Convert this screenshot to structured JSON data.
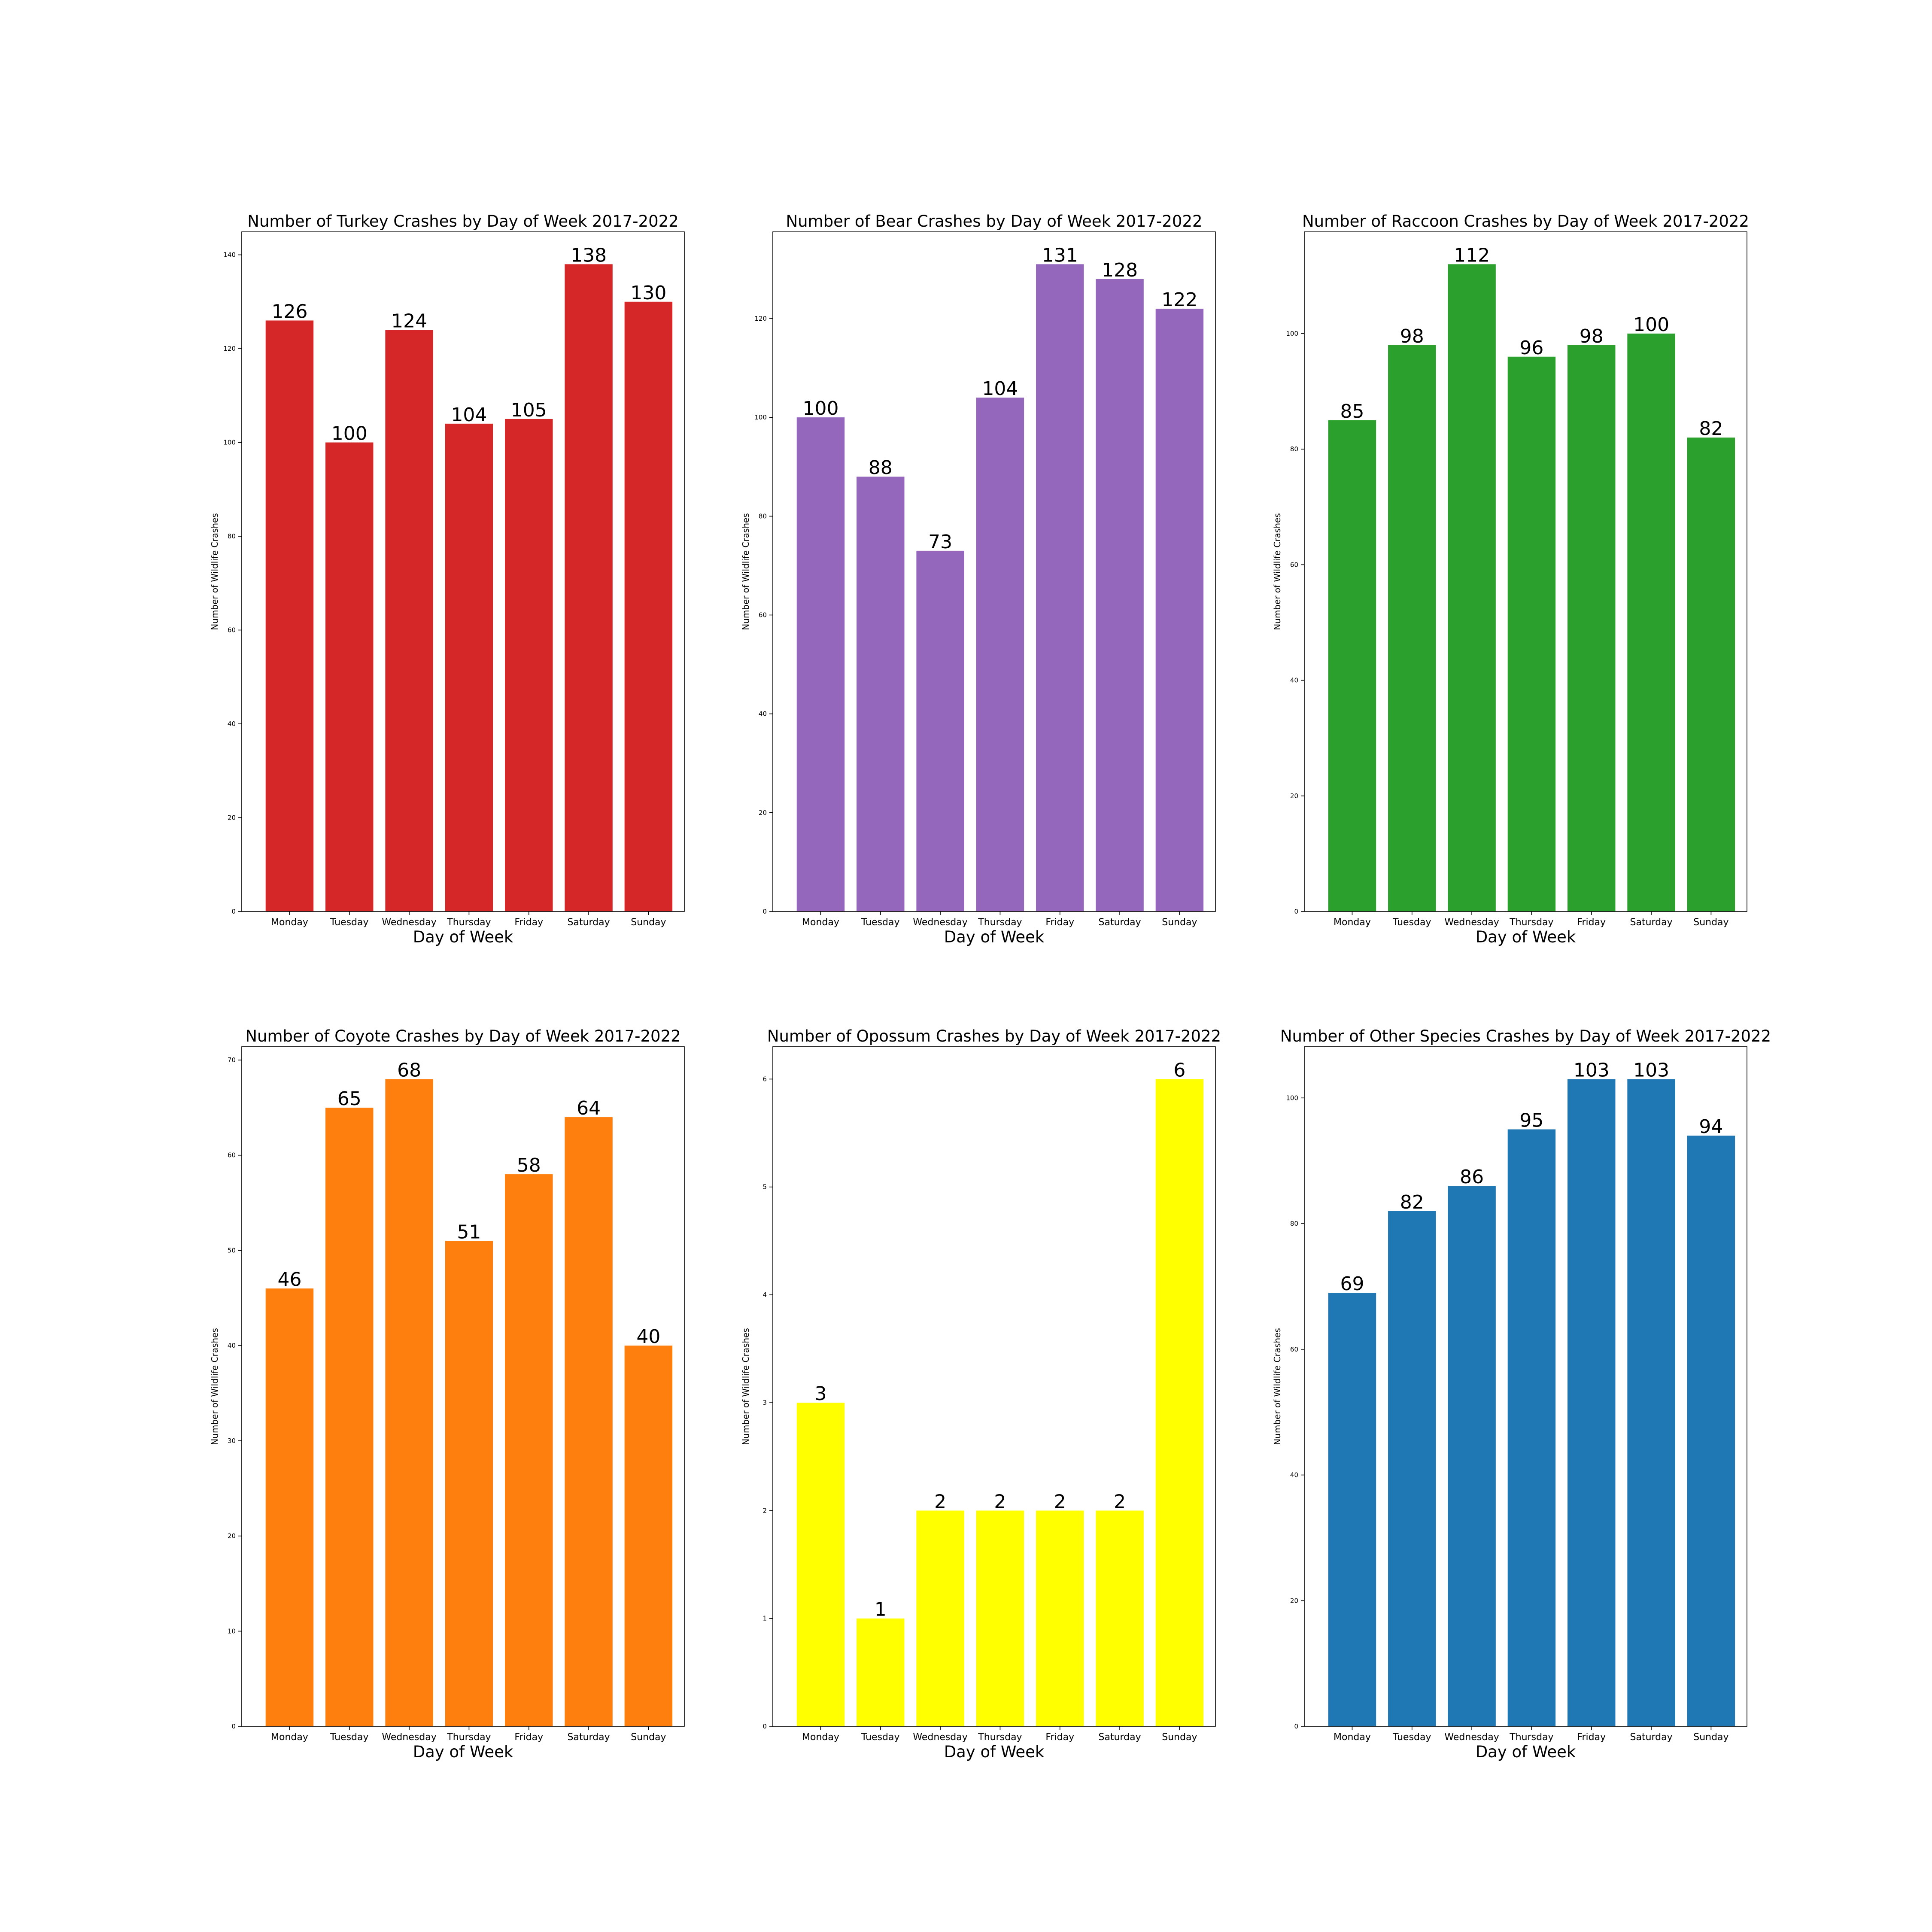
{
  "chart_data": [
    {
      "type": "bar",
      "title": "Number of Turkey Crashes by Day of Week 2017-2022",
      "xlabel": "Day of Week",
      "ylabel": "Number of Wildlife Crashes",
      "categories": [
        "Monday",
        "Tuesday",
        "Wednesday",
        "Thursday",
        "Friday",
        "Saturday",
        "Sunday"
      ],
      "values": [
        126,
        100,
        124,
        104,
        105,
        138,
        130
      ],
      "ylim": [
        0,
        144.9
      ],
      "yticks": [
        0,
        20,
        40,
        60,
        80,
        100,
        120,
        140
      ],
      "color": "#d62728",
      "data_labels": true,
      "grid": false,
      "legend": "none"
    },
    {
      "type": "bar",
      "title": "Number of Bear Crashes by Day of Week 2017-2022",
      "xlabel": "Day of Week",
      "ylabel": "Number of Wildlife Crashes",
      "categories": [
        "Monday",
        "Tuesday",
        "Wednesday",
        "Thursday",
        "Friday",
        "Saturday",
        "Sunday"
      ],
      "values": [
        100,
        88,
        73,
        104,
        131,
        128,
        122
      ],
      "ylim": [
        0,
        137.55
      ],
      "yticks": [
        0,
        20,
        40,
        60,
        80,
        100,
        120
      ],
      "color": "#9467bd",
      "data_labels": true,
      "grid": false,
      "legend": "none"
    },
    {
      "type": "bar",
      "title": "Number of Raccoon Crashes by Day of Week 2017-2022",
      "xlabel": "Day of Week",
      "ylabel": "Number of Wildlife Crashes",
      "categories": [
        "Monday",
        "Tuesday",
        "Wednesday",
        "Thursday",
        "Friday",
        "Saturday",
        "Sunday"
      ],
      "values": [
        85,
        98,
        112,
        96,
        98,
        100,
        82
      ],
      "ylim": [
        0,
        117.6
      ],
      "yticks": [
        0,
        20,
        40,
        60,
        80,
        100
      ],
      "color": "#2ca02c",
      "data_labels": true,
      "grid": false,
      "legend": "none"
    },
    {
      "type": "bar",
      "title": "Number of Coyote Crashes by Day of Week 2017-2022",
      "xlabel": "Day of Week",
      "ylabel": "Number of Wildlife Crashes",
      "categories": [
        "Monday",
        "Tuesday",
        "Wednesday",
        "Thursday",
        "Friday",
        "Saturday",
        "Sunday"
      ],
      "values": [
        46,
        65,
        68,
        51,
        58,
        64,
        40
      ],
      "ylim": [
        0,
        71.4
      ],
      "yticks": [
        0,
        10,
        20,
        30,
        40,
        50,
        60,
        70
      ],
      "color": "#ff7f0e",
      "data_labels": true,
      "grid": false,
      "legend": "none"
    },
    {
      "type": "bar",
      "title": "Number of Opossum Crashes by Day of Week 2017-2022",
      "xlabel": "Day of Week",
      "ylabel": "Number of Wildlife Crashes",
      "categories": [
        "Monday",
        "Tuesday",
        "Wednesday",
        "Thursday",
        "Friday",
        "Saturday",
        "Sunday"
      ],
      "values": [
        3,
        1,
        2,
        2,
        2,
        2,
        6
      ],
      "ylim": [
        0,
        6.3
      ],
      "yticks": [
        0,
        1,
        2,
        3,
        4,
        5,
        6
      ],
      "color": "#ffff00",
      "data_labels": true,
      "grid": false,
      "legend": "none"
    },
    {
      "type": "bar",
      "title": "Number of Other Species Crashes by Day of Week 2017-2022",
      "xlabel": "Day of Week",
      "ylabel": "Number of Wildlife Crashes",
      "categories": [
        "Monday",
        "Tuesday",
        "Wednesday",
        "Thursday",
        "Friday",
        "Saturday",
        "Sunday"
      ],
      "values": [
        69,
        82,
        86,
        95,
        103,
        103,
        94
      ],
      "ylim": [
        0,
        108.15
      ],
      "yticks": [
        0,
        20,
        40,
        60,
        80,
        100
      ],
      "color": "#1f77b4",
      "data_labels": true,
      "grid": false,
      "legend": "none"
    }
  ]
}
